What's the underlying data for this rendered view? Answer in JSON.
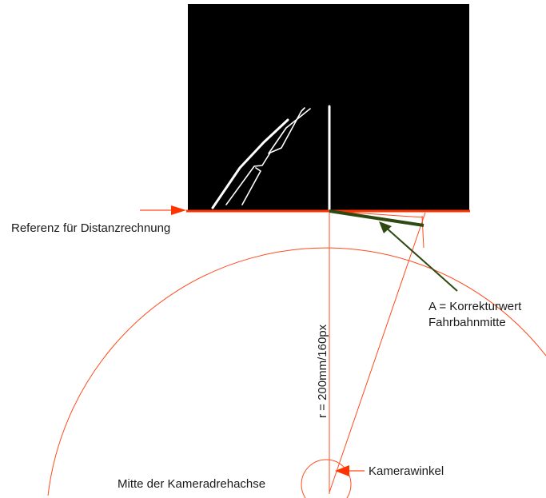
{
  "labels": {
    "reference": "Referenz für Distanzrechnung",
    "correction_line1": "A = Korrekturwert",
    "correction_line2": "Fahrbahnmitte",
    "radius": "r = 200mm/160px",
    "camera_angle": "Kamerawinkel",
    "rotation_center": "Mitte der Kameradrehachse"
  },
  "colors": {
    "camera_frame": "#000000",
    "lane_marking": "#ffffff",
    "reference_line": "#ff3300",
    "geometry": "#ff4a1c",
    "correction": "#2d4a12",
    "text": "#1a1a1a"
  }
}
